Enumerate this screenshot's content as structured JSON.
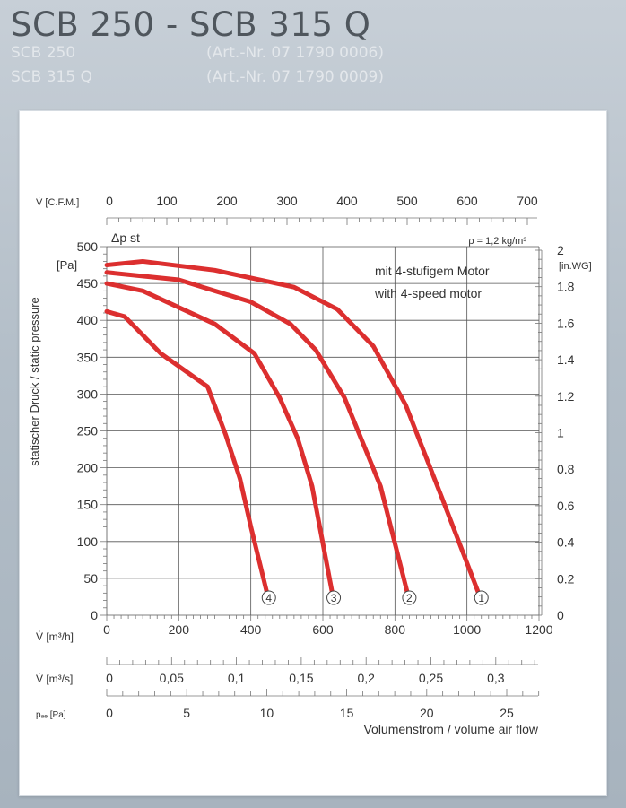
{
  "header": {
    "title": "SCB 250 - SCB 315 Q",
    "models": [
      {
        "name": "SCB 250",
        "art": "(Art.-Nr. 07 1790 0006)"
      },
      {
        "name": "SCB 315 Q",
        "art": "(Art.-Nr. 07 1790 0009)"
      }
    ]
  },
  "chart_data": {
    "type": "line",
    "title": "",
    "ylabel": "statischer Druck / static pressure",
    "ylabel_symbol": "Δp st",
    "yunit": "[Pa]",
    "ylim": [
      0,
      500
    ],
    "y_ticks": [
      "0",
      "50",
      "100",
      "150",
      "200",
      "250",
      "300",
      "350",
      "400",
      "450",
      "500"
    ],
    "xunit": "V̇ [m³/h]",
    "xlim": [
      0,
      1200
    ],
    "x_ticks": [
      "0",
      "200",
      "400",
      "600",
      "800",
      "1000",
      "1200"
    ],
    "xlabel": "Volumenstrom / volume air flow",
    "density_note": "ρ = 1,2 kg/m³",
    "legend_note_1": "mit 4-stufigem Motor",
    "legend_note_2": "with 4-speed motor",
    "secondary_axes": {
      "cfm": {
        "label": "V̇ [C.F.M.]",
        "ticks": [
          "0",
          "100",
          "200",
          "300",
          "400",
          "500",
          "600",
          "700"
        ],
        "range": [
          0,
          700
        ]
      },
      "inwg": {
        "label": "[in.WG]",
        "ticks": [
          "0",
          "0.2",
          "0.4",
          "0.6",
          "0.8",
          "1",
          "1.2",
          "1.4",
          "1.6",
          "1.8",
          "2"
        ],
        "range": [
          0,
          2
        ]
      },
      "m3s": {
        "label": "V̇ [m³/s]",
        "ticks": [
          "0",
          "0,05",
          "0,1",
          "0,15",
          "0,2",
          "0,25",
          "0,3"
        ],
        "range": [
          0,
          0.3333
        ]
      },
      "pdyn": {
        "label": "pₐₑ [Pa]",
        "ticks": [
          "0",
          "5",
          "10",
          "15",
          "20",
          "25"
        ],
        "range": [
          0,
          25
        ]
      }
    },
    "series": [
      {
        "name": "1",
        "x": [
          0,
          100,
          300,
          520,
          640,
          740,
          830,
          930,
          1040
        ],
        "y": [
          475,
          480,
          468,
          445,
          415,
          365,
          285,
          160,
          20
        ]
      },
      {
        "name": "2",
        "x": [
          0,
          200,
          400,
          510,
          580,
          660,
          760,
          840
        ],
        "y": [
          465,
          455,
          425,
          395,
          360,
          295,
          175,
          20
        ]
      },
      {
        "name": "3",
        "x": [
          0,
          100,
          300,
          410,
          480,
          530,
          570,
          630
        ],
        "y": [
          450,
          440,
          395,
          355,
          295,
          240,
          175,
          20
        ]
      },
      {
        "name": "4",
        "x": [
          0,
          50,
          150,
          280,
          330,
          370,
          400,
          450
        ],
        "y": [
          412,
          405,
          355,
          310,
          245,
          185,
          120,
          20
        ]
      }
    ],
    "curve_color": "#dc2f2f"
  }
}
